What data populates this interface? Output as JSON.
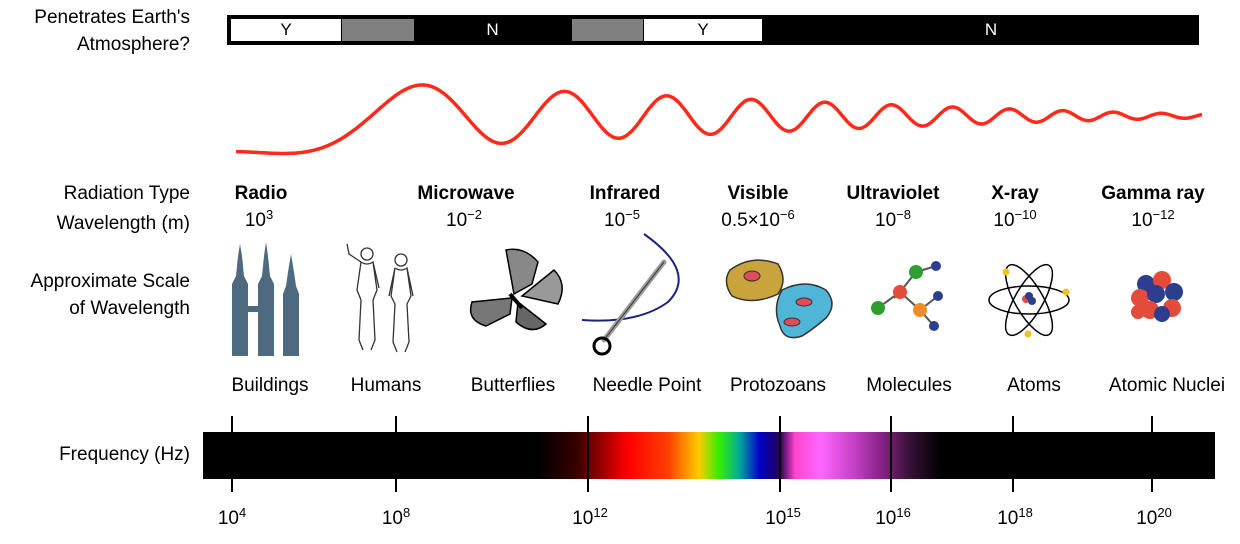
{
  "row_labels": {
    "atmosphere_line1": "Penetrates Earth's",
    "atmosphere_line2": "Atmosphere?",
    "radiation_type": "Radiation Type",
    "wavelength": "Wavelength (m)",
    "scale_line1": "Approximate Scale",
    "scale_line2": "of Wavelength",
    "frequency": "Frequency (Hz)"
  },
  "atmosphere": [
    {
      "label": "Y",
      "state": "yes"
    },
    {
      "label": "",
      "state": "partial"
    },
    {
      "label": "N",
      "state": "no"
    },
    {
      "label": "",
      "state": "partial"
    },
    {
      "label": "Y",
      "state": "yes"
    },
    {
      "label": "N",
      "state": "no"
    }
  ],
  "radiation": [
    {
      "type": "Radiation",
      "name": "Radio",
      "wl_base": "10",
      "wl_exp": "3",
      "scale": "Buildings",
      "icon": "twin-towers-icon"
    },
    {
      "name": "Microwave",
      "wl_base": "10",
      "wl_exp": "−2",
      "scale": "Humans",
      "icon": "humans-icon"
    },
    {
      "name": "Infrared",
      "wl_base": "10",
      "wl_exp": "−5",
      "scale": "Butterflies",
      "icon": "butterfly-icon"
    },
    {
      "name": "Visible",
      "wl_base": "0.5×10",
      "wl_exp": "−6",
      "scale": "Needle Point",
      "icon": "needle-icon"
    },
    {
      "name": "Ultraviolet",
      "wl_base": "10",
      "wl_exp": "−8",
      "scale": "Protozoans",
      "icon": "protozoa-icon"
    },
    {
      "name": "X-ray",
      "wl_base": "10",
      "wl_exp": "−10",
      "scale": "Molecules",
      "icon": "molecule-icon"
    },
    {
      "name": "Gamma ray",
      "wl_base": "10",
      "wl_exp": "−12",
      "scale": "Atoms",
      "icon": "atom-icon"
    },
    {
      "scale": "Atomic Nuclei",
      "icon": "nucleus-icon"
    }
  ],
  "frequency_ticks": [
    {
      "base": "10",
      "exp": "4"
    },
    {
      "base": "10",
      "exp": "8"
    },
    {
      "base": "10",
      "exp": "12"
    },
    {
      "base": "10",
      "exp": "15"
    },
    {
      "base": "10",
      "exp": "16"
    },
    {
      "base": "10",
      "exp": "18"
    },
    {
      "base": "10",
      "exp": "20"
    }
  ],
  "colors": {
    "wave": "#ff2a1a",
    "bar": "#000000",
    "partial": "#808080",
    "icon_slate": "#4d6a80"
  }
}
